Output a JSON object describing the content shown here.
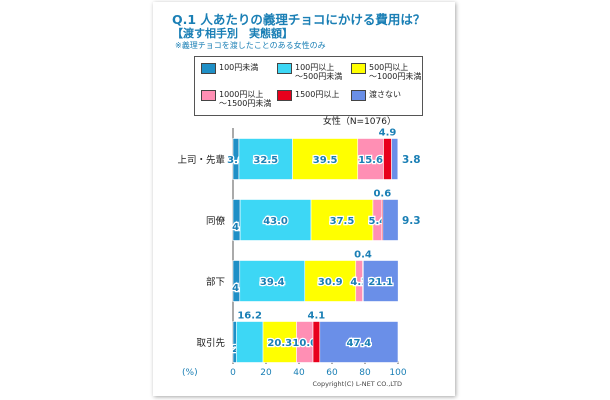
{
  "title": "Q.1 人あたりの義理チョコにかける費用は？",
  "subtitle": "【渡す相手別　実態額】",
  "note": "※義理チョコを渡したことのある女性のみ",
  "copyright": "Copyright(C) L-NET CO.,LTD",
  "colors": [
    "#1f8fc6",
    "#3dd7f5",
    "#ffff00",
    "#ff8fb4",
    "#e8001c",
    "#6a8fe8"
  ],
  "legend": [
    {
      "label": "100円未満"
    },
    {
      "label": "100円以上\n～500円未満"
    },
    {
      "label": "500円以上\n～1000円未満"
    },
    {
      "label": "1000円以上\n～1500円未満"
    },
    {
      "label": "1500円以上"
    },
    {
      "label": "渡さない"
    }
  ],
  "chart_data": {
    "type": "bar",
    "orientation": "horizontal",
    "stacked": true,
    "annotation": "女性（N=1076）",
    "xlabel": "(%)",
    "xlim": [
      0,
      100
    ],
    "xticks": [
      0,
      20,
      40,
      60,
      80,
      100
    ],
    "categories": [
      "上司・先輩",
      "同僚",
      "部下",
      "取引先"
    ],
    "series": [
      {
        "name": "100円未満",
        "values": [
          3.6,
          4.3,
          4.1,
          2.0
        ]
      },
      {
        "name": "100円以上～500円未満",
        "values": [
          32.5,
          43.0,
          39.4,
          16.2
        ]
      },
      {
        "name": "500円以上～1000円未満",
        "values": [
          39.5,
          37.5,
          30.9,
          20.3
        ]
      },
      {
        "name": "1000円以上～1500円未満",
        "values": [
          15.6,
          5.4,
          4.2,
          10.0
        ]
      },
      {
        "name": "1500円以上",
        "values": [
          4.9,
          0.6,
          0.4,
          4.1
        ]
      },
      {
        "name": "渡さない",
        "values": [
          3.8,
          9.3,
          21.1,
          47.4
        ]
      }
    ]
  }
}
